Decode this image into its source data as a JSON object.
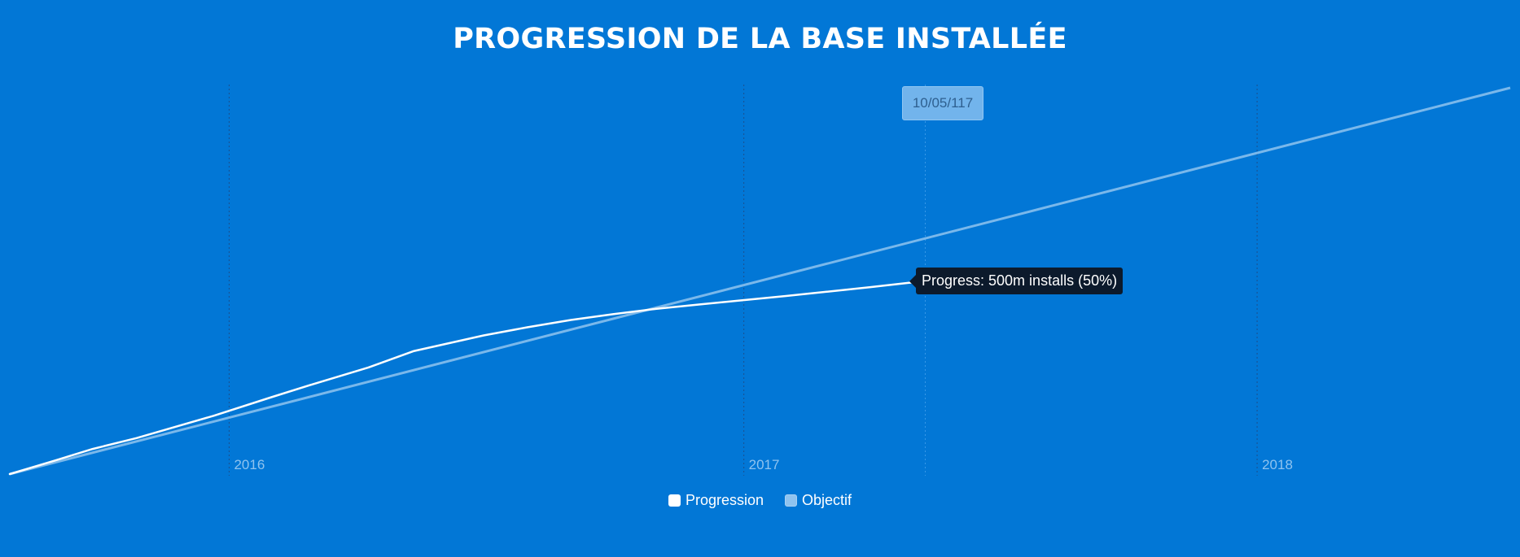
{
  "chart_data": {
    "type": "line",
    "title": "PROGRESSION DE LA BASE INSTALLÉE",
    "xlabel": "",
    "ylabel": "",
    "x_ticks": [
      "2016",
      "2017",
      "2018"
    ],
    "x_range": [
      "2015-07-29",
      "2018-06-30"
    ],
    "series": [
      {
        "name": "Progression",
        "color": "#ffffff",
        "points": [
          {
            "x": "2015-07-29",
            "y": 0
          },
          {
            "x": "2015-08-30",
            "y": 35
          },
          {
            "x": "2015-09-26",
            "y": 65
          },
          {
            "x": "2015-10-27",
            "y": 93
          },
          {
            "x": "2015-12-21",
            "y": 151
          },
          {
            "x": "2016-01-31",
            "y": 199
          },
          {
            "x": "2016-02-29",
            "y": 232
          },
          {
            "x": "2016-04-09",
            "y": 276
          },
          {
            "x": "2016-05-11",
            "y": 318
          },
          {
            "x": "2016-06-30",
            "y": 359
          },
          {
            "x": "2016-07-31",
            "y": 380
          },
          {
            "x": "2016-08-31",
            "y": 399
          },
          {
            "x": "2016-09-30",
            "y": 414
          },
          {
            "x": "2016-10-31",
            "y": 428
          },
          {
            "x": "2016-11-30",
            "y": 439
          },
          {
            "x": "2016-12-31",
            "y": 450
          },
          {
            "x": "2017-01-31",
            "y": 461
          },
          {
            "x": "2017-03-01",
            "y": 472
          },
          {
            "x": "2017-04-01",
            "y": 484
          },
          {
            "x": "2017-05-10",
            "y": 500
          }
        ]
      },
      {
        "name": "Objectif",
        "color": "#8fc3ef",
        "points": [
          {
            "x": "2015-07-29",
            "y": 0
          },
          {
            "x": "2018-06-30",
            "y": 1000
          }
        ]
      }
    ],
    "y_range": [
      0,
      1000
    ],
    "grid": "vertical dashed at year ticks",
    "legend": "bottom-center",
    "crosshair_date": "10/05/117",
    "tooltip": "Progress: 500m installs (50%)"
  },
  "colors": {
    "background": "#0277d6",
    "gridline": "#1c4f8c",
    "crosshair": "#3a9ae8",
    "progress_line": "#ffffff",
    "objective_line": "#8fc3ef"
  }
}
